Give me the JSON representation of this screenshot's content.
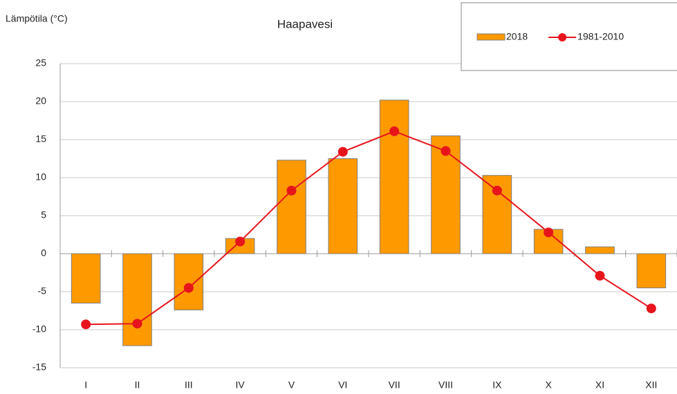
{
  "chart_data": {
    "type": "bar_line",
    "title": "Haapavesi",
    "y_axis_label": "Lämpötila (°C)",
    "categories": [
      "I",
      "II",
      "III",
      "IV",
      "V",
      "VI",
      "VII",
      "VIII",
      "IX",
      "X",
      "XI",
      "XII"
    ],
    "series": [
      {
        "name": "2018",
        "type": "bar",
        "color": "#ff9900",
        "values": [
          -6.5,
          -12.1,
          -7.4,
          2.0,
          12.3,
          12.5,
          20.2,
          15.5,
          10.3,
          3.2,
          0.9,
          -4.5
        ]
      },
      {
        "name": "1981-2010",
        "type": "line",
        "color": "#e8141c",
        "values": [
          -9.3,
          -9.2,
          -4.5,
          1.6,
          8.3,
          13.4,
          16.1,
          13.5,
          8.3,
          2.8,
          -2.9,
          -7.2
        ]
      }
    ],
    "ylim": [
      -15,
      25
    ],
    "yticks": [
      -15,
      -10,
      -5,
      0,
      5,
      10,
      15,
      20,
      25
    ],
    "grid": true,
    "legend": "top-right"
  }
}
